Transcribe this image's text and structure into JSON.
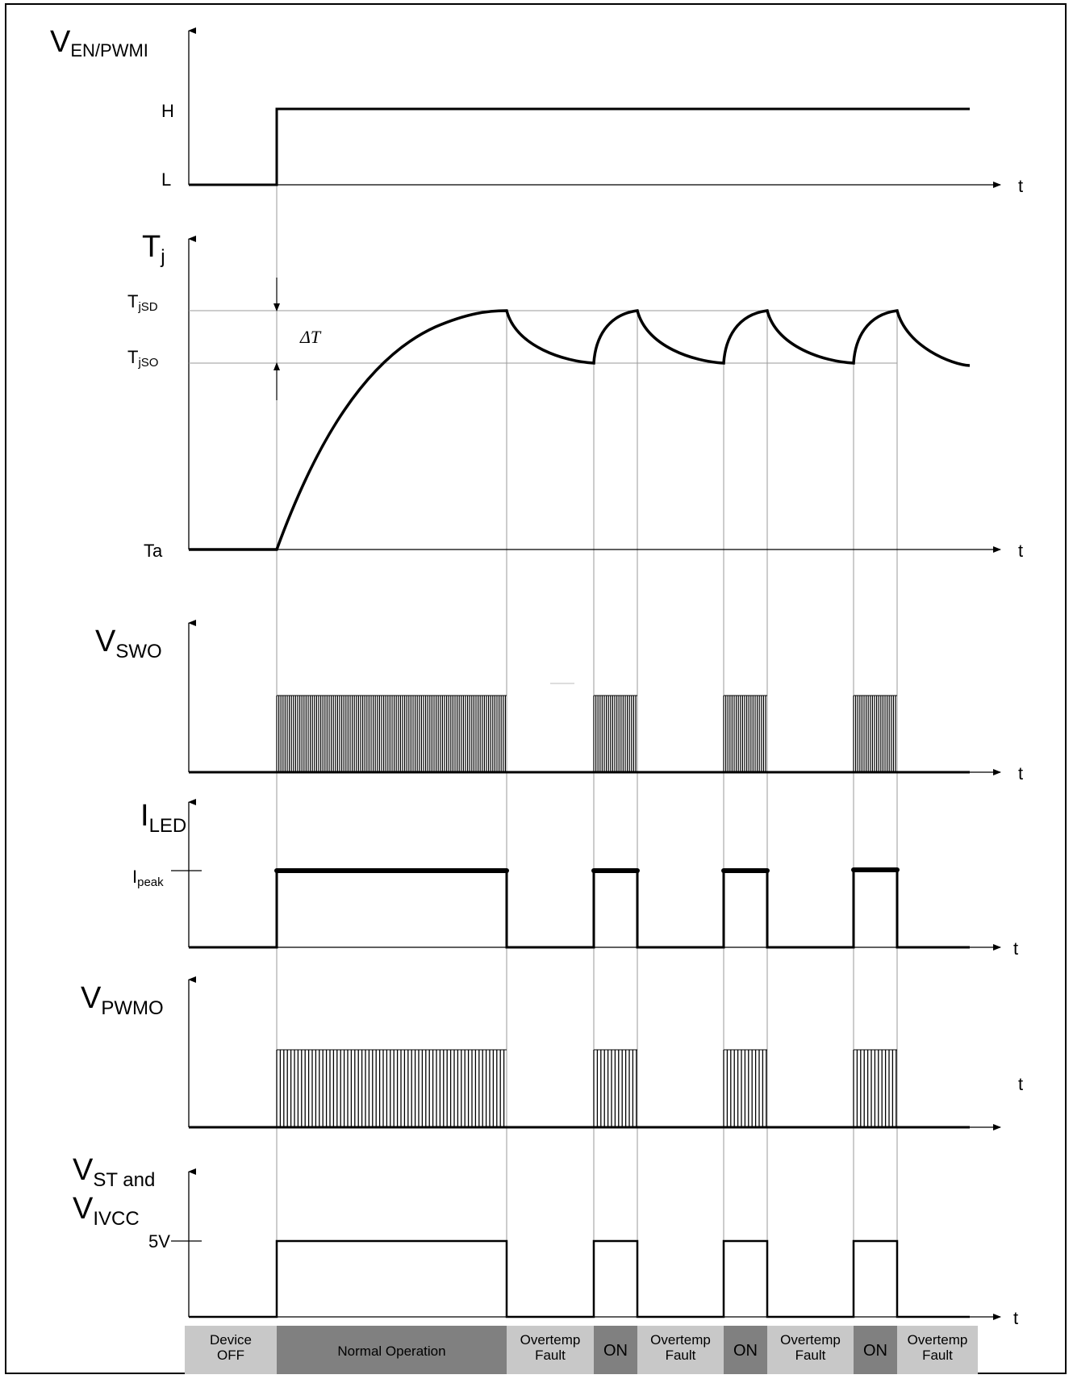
{
  "signals": {
    "en": {
      "label_main": "V",
      "label_sub": "EN/PWMI",
      "level_high": "H",
      "level_low": "L",
      "axis": "t"
    },
    "tj": {
      "label_main": "T",
      "label_sub": "j",
      "level_sd_main": "T",
      "level_sd_sub": "jSD",
      "level_so_main": "T",
      "level_so_sub": "jSO",
      "level_ta": "Ta",
      "delta": "ΔT",
      "axis": "t"
    },
    "swo": {
      "label_main": "V",
      "label_sub": "SWO",
      "axis": "t"
    },
    "iled": {
      "label_main": "I",
      "label_sub": "LED",
      "level_peak_main": "I",
      "level_peak_sub": "peak",
      "axis": "t"
    },
    "pwmo": {
      "label_main": "V",
      "label_sub": "PWMO",
      "axis": "t"
    },
    "st": {
      "label_line1_main": "V",
      "label_line1_sub": "ST and",
      "label_line2_main": "V",
      "label_line2_sub": "IVCC",
      "level_5v": "5V",
      "axis": "t"
    }
  },
  "phases": [
    {
      "line1": "Device",
      "line2": "OFF",
      "shade": "light"
    },
    {
      "line1": "Normal Operation",
      "line2": "",
      "shade": "dark"
    },
    {
      "line1": "Overtemp",
      "line2": "Fault",
      "shade": "light"
    },
    {
      "line1": "ON",
      "line2": "",
      "shade": "dark"
    },
    {
      "line1": "Overtemp",
      "line2": "Fault",
      "shade": "light"
    },
    {
      "line1": "ON",
      "line2": "",
      "shade": "dark"
    },
    {
      "line1": "Overtemp",
      "line2": "Fault",
      "shade": "light"
    },
    {
      "line1": "ON",
      "line2": "",
      "shade": "dark"
    },
    {
      "line1": "Overtemp",
      "line2": "Fault",
      "shade": "light"
    }
  ],
  "colors": {
    "phase_light": "#c8c8c8",
    "phase_dark": "#808080",
    "guide": "#9a9a9a"
  }
}
